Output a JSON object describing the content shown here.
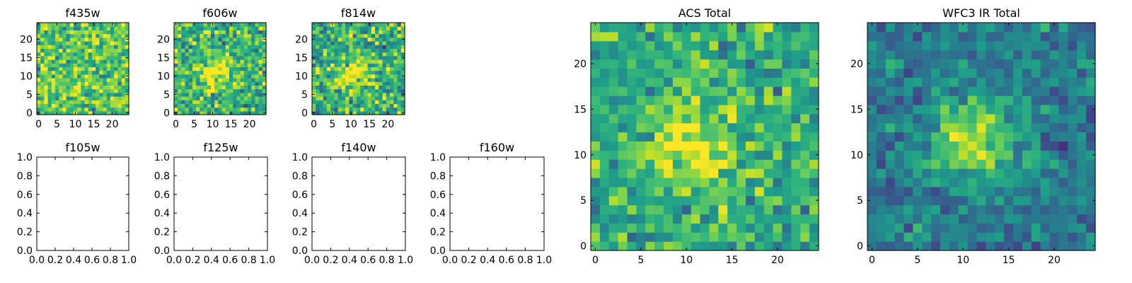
{
  "chart_data": [
    {
      "id": "f435w",
      "type": "heatmap",
      "title": "f435w",
      "xlim": [
        -0.5,
        24.5
      ],
      "ylim": [
        -0.5,
        24.5
      ],
      "xticks": [
        0,
        5,
        10,
        15,
        20
      ],
      "yticks": [
        0,
        5,
        10,
        15,
        20
      ],
      "tick_labels": [
        "0",
        "5",
        "10",
        "15",
        "20"
      ],
      "grid_size": 25,
      "colormap": "viridis",
      "source_blob": {
        "cx": 12,
        "cy": 12,
        "sigma": 4,
        "amp": 0.0
      },
      "noise": {
        "base": 0.74,
        "sd": 0.16,
        "seed": 11
      },
      "values": null
    },
    {
      "id": "f606w",
      "type": "heatmap",
      "title": "f606w",
      "xlim": [
        -0.5,
        24.5
      ],
      "ylim": [
        -0.5,
        24.5
      ],
      "xticks": [
        0,
        5,
        10,
        15,
        20
      ],
      "yticks": [
        0,
        5,
        10,
        15,
        20
      ],
      "tick_labels": [
        "0",
        "5",
        "10",
        "15",
        "20"
      ],
      "grid_size": 25,
      "colormap": "viridis",
      "source_blob": {
        "cx": 11,
        "cy": 11,
        "sigma": 3,
        "amp": 0.35
      },
      "noise": {
        "base": 0.66,
        "sd": 0.16,
        "seed": 23
      },
      "values": null
    },
    {
      "id": "f814w",
      "type": "heatmap",
      "title": "f814w",
      "xlim": [
        -0.5,
        24.5
      ],
      "ylim": [
        -0.5,
        24.5
      ],
      "xticks": [
        0,
        5,
        10,
        15,
        20
      ],
      "yticks": [
        0,
        5,
        10,
        15,
        20
      ],
      "tick_labels": [
        "0",
        "5",
        "10",
        "15",
        "20"
      ],
      "grid_size": 25,
      "colormap": "viridis",
      "source_blob": {
        "cx": 11,
        "cy": 11,
        "sigma": 3.2,
        "amp": 0.35
      },
      "noise": {
        "base": 0.64,
        "sd": 0.17,
        "seed": 37
      },
      "values": null
    },
    {
      "id": "f105w",
      "type": "empty",
      "title": "f105w",
      "xlim": [
        0,
        1
      ],
      "ylim": [
        0,
        1
      ],
      "ticks": [
        0.0,
        0.2,
        0.4,
        0.6,
        0.8,
        1.0
      ],
      "tick_labels": [
        "0.0",
        "0.2",
        "0.4",
        "0.6",
        "0.8",
        "1.0"
      ]
    },
    {
      "id": "f125w",
      "type": "empty",
      "title": "f125w",
      "xlim": [
        0,
        1
      ],
      "ylim": [
        0,
        1
      ],
      "ticks": [
        0.0,
        0.2,
        0.4,
        0.6,
        0.8,
        1.0
      ],
      "tick_labels": [
        "0.0",
        "0.2",
        "0.4",
        "0.6",
        "0.8",
        "1.0"
      ]
    },
    {
      "id": "f140w",
      "type": "empty",
      "title": "f140w",
      "xlim": [
        0,
        1
      ],
      "ylim": [
        0,
        1
      ],
      "ticks": [
        0.0,
        0.2,
        0.4,
        0.6,
        0.8,
        1.0
      ],
      "tick_labels": [
        "0.0",
        "0.2",
        "0.4",
        "0.6",
        "0.8",
        "1.0"
      ]
    },
    {
      "id": "f160w",
      "type": "empty",
      "title": "f160w",
      "xlim": [
        0,
        1
      ],
      "ylim": [
        0,
        1
      ],
      "ticks": [
        0.0,
        0.2,
        0.4,
        0.6,
        0.8,
        1.0
      ],
      "tick_labels": [
        "0.0",
        "0.2",
        "0.4",
        "0.6",
        "0.8",
        "1.0"
      ]
    },
    {
      "id": "acs-total",
      "type": "heatmap",
      "title": "ACS Total",
      "xlim": [
        -0.5,
        24.5
      ],
      "ylim": [
        -0.5,
        24.5
      ],
      "xticks": [
        0,
        5,
        10,
        15,
        20
      ],
      "yticks": [
        0,
        5,
        10,
        15,
        20
      ],
      "tick_labels": [
        "0",
        "5",
        "10",
        "15",
        "20"
      ],
      "grid_size": 25,
      "colormap": "viridis",
      "source_blob": {
        "cx": 11,
        "cy": 11,
        "sigma": 3.5,
        "amp": 0.3
      },
      "noise": {
        "base": 0.62,
        "sd": 0.13,
        "seed": 51
      },
      "values": null
    },
    {
      "id": "wfc3-ir-total",
      "type": "heatmap",
      "title": "WFC3 IR Total",
      "xlim": [
        -0.5,
        24.5
      ],
      "ylim": [
        -0.5,
        24.5
      ],
      "xticks": [
        0,
        5,
        10,
        15,
        20
      ],
      "yticks": [
        0,
        5,
        10,
        15,
        20
      ],
      "tick_labels": [
        "0",
        "5",
        "10",
        "15",
        "20"
      ],
      "grid_size": 25,
      "colormap": "viridis",
      "source_blob": {
        "cx": 11,
        "cy": 12,
        "sigma": 3.2,
        "amp": 0.5
      },
      "noise": {
        "base": 0.42,
        "sd": 0.1,
        "seed": 67
      },
      "values": null
    }
  ],
  "colors": {
    "viridis": [
      "#440154",
      "#482878",
      "#3e4989",
      "#31688e",
      "#26828e",
      "#1f9e89",
      "#35b779",
      "#6ece58",
      "#b5de2b",
      "#fde725"
    ],
    "axis": "#000000",
    "background": "#ffffff"
  }
}
